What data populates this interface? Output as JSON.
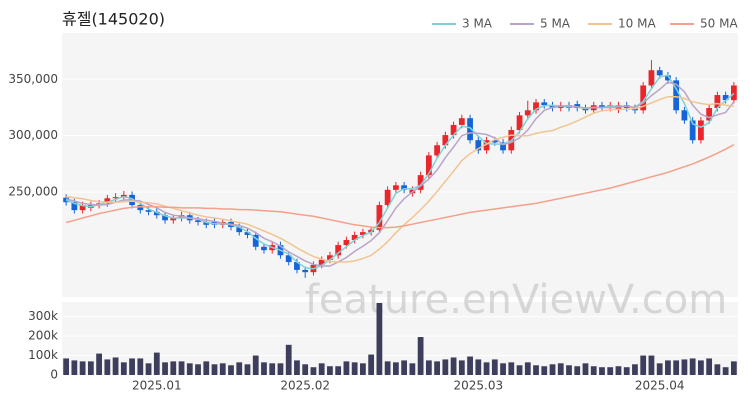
{
  "chart_data": [
    {
      "type": "candlestick",
      "title": "휴젤(145020)",
      "watermark": "feature.enViewV.com",
      "up_color": "#e8262c",
      "down_color": "#1565d8",
      "ylim": [
        157000,
        391000
      ],
      "yticks": [
        {
          "value": 250000,
          "label": "250,000"
        },
        {
          "value": 300000,
          "label": "300,000"
        },
        {
          "value": 350000,
          "label": "350,000"
        }
      ],
      "grid": true,
      "open": [
        245000,
        241000,
        234000,
        236000,
        238500,
        240000,
        244500,
        245500,
        247500,
        238500,
        234000,
        232500,
        229500,
        225000,
        227000,
        229500,
        225000,
        223500,
        224000,
        221000,
        223500,
        219000,
        214500,
        212000,
        201500,
        198500,
        203000,
        194000,
        188000,
        181000,
        179000,
        185500,
        190000,
        194000,
        203000,
        207500,
        212000,
        214500,
        216500,
        238500,
        252000,
        256000,
        249000,
        252000,
        265000,
        282500,
        291500,
        300500,
        309500,
        315500,
        296000,
        287000,
        296000,
        294000,
        287000,
        305000,
        318000,
        322500,
        329500,
        327000,
        324500,
        327000,
        328000,
        324500,
        322500,
        327000,
        324500,
        323000,
        327000,
        324500,
        322500,
        344500,
        358000,
        353500,
        349000,
        322500,
        313500,
        296000,
        313500,
        324500,
        336000,
        331500
      ],
      "high": [
        248000,
        244000,
        241500,
        241500,
        243000,
        247500,
        249000,
        251000,
        250500,
        241500,
        237000,
        235500,
        232500,
        230000,
        232500,
        232500,
        228000,
        226500,
        227000,
        226500,
        226500,
        222000,
        217500,
        215000,
        204500,
        206000,
        206000,
        197000,
        191000,
        184000,
        188500,
        193000,
        197000,
        206000,
        210500,
        215000,
        217500,
        219500,
        241500,
        255000,
        259000,
        259000,
        255000,
        268000,
        285500,
        294500,
        303500,
        312500,
        318500,
        318500,
        299000,
        299000,
        299000,
        297000,
        308000,
        321000,
        331000,
        332500,
        332500,
        330000,
        330000,
        330000,
        331000,
        327500,
        330000,
        330000,
        330000,
        330000,
        330000,
        327500,
        347500,
        367000,
        361000,
        356500,
        352000,
        325500,
        316500,
        316500,
        327500,
        339000,
        339000,
        347500
      ],
      "low": [
        238000,
        231000,
        231000,
        233000,
        235500,
        237000,
        241500,
        242500,
        235500,
        231000,
        229500,
        226500,
        222000,
        222000,
        224000,
        222000,
        220500,
        218000,
        218000,
        218000,
        216000,
        211500,
        209000,
        198500,
        195500,
        195500,
        191000,
        185000,
        178000,
        174000,
        176000,
        182500,
        187000,
        191000,
        200000,
        204500,
        209000,
        211500,
        213500,
        235500,
        249000,
        249000,
        246000,
        249000,
        262000,
        279500,
        288500,
        297500,
        306500,
        293000,
        284000,
        284000,
        291000,
        284000,
        284000,
        302000,
        315000,
        319500,
        324000,
        321500,
        321500,
        321500,
        321500,
        319500,
        319500,
        321500,
        321500,
        320000,
        321500,
        319500,
        319500,
        341500,
        350500,
        346000,
        319500,
        310500,
        293000,
        293000,
        310500,
        321500,
        328500,
        328500
      ],
      "close": [
        241000,
        234000,
        238500,
        238500,
        240000,
        244500,
        245500,
        247500,
        238500,
        234000,
        232500,
        229500,
        225000,
        227000,
        229500,
        225000,
        223500,
        221000,
        221000,
        223500,
        219000,
        214500,
        212000,
        201500,
        198500,
        203000,
        194000,
        188000,
        181000,
        179000,
        185500,
        190000,
        194000,
        203000,
        207500,
        212000,
        214500,
        216500,
        238500,
        252000,
        256000,
        252000,
        252000,
        265000,
        282500,
        291500,
        300500,
        309500,
        315500,
        296000,
        287000,
        296000,
        294000,
        287000,
        305000,
        318000,
        322500,
        329500,
        327000,
        324500,
        327000,
        324500,
        324500,
        322500,
        327000,
        324500,
        327000,
        327000,
        324500,
        322500,
        344500,
        358000,
        353500,
        349000,
        322500,
        313500,
        296000,
        313500,
        324500,
        336000,
        331500,
        344500
      ],
      "series": [
        {
          "name": "3 MA",
          "color": "#7fd1d8",
          "values": [
            243000,
            240000,
            238000,
            237000,
            239000,
            241000,
            243500,
            246000,
            244000,
            240000,
            235000,
            232000,
            229000,
            227000,
            227000,
            227000,
            226000,
            223000,
            222000,
            222000,
            221000,
            219000,
            215000,
            209000,
            204000,
            201000,
            198500,
            195000,
            188000,
            183000,
            182000,
            185000,
            190000,
            196000,
            201500,
            207500,
            211500,
            214500,
            223000,
            236000,
            249000,
            253000,
            253000,
            256000,
            266500,
            280000,
            291500,
            300500,
            308500,
            307000,
            299500,
            293000,
            292500,
            292500,
            295500,
            303500,
            315000,
            323500,
            326500,
            327000,
            326000,
            325500,
            325500,
            324000,
            325000,
            325000,
            326000,
            326000,
            326000,
            325000,
            330500,
            341500,
            352000,
            353500,
            341500,
            328500,
            310500,
            307500,
            311500,
            324500,
            331000,
            337500
          ]
        },
        {
          "name": "5 MA",
          "color": "#b8a4c9",
          "values": [
            244000,
            242000,
            240000,
            239000,
            238500,
            239000,
            241000,
            243000,
            243000,
            242000,
            239000,
            236000,
            232000,
            229500,
            228500,
            227000,
            226500,
            225000,
            224000,
            222500,
            221500,
            220500,
            218000,
            214000,
            209000,
            206000,
            202000,
            197000,
            193000,
            189000,
            186000,
            184500,
            184500,
            188000,
            192000,
            197500,
            202000,
            207000,
            214000,
            224500,
            236000,
            244000,
            250000,
            255500,
            261500,
            269500,
            280500,
            290000,
            300000,
            302500,
            302000,
            301000,
            298000,
            292000,
            294000,
            298000,
            305000,
            315000,
            322500,
            325000,
            326000,
            326500,
            325500,
            324500,
            325000,
            325000,
            325000,
            325500,
            326000,
            325000,
            329000,
            335500,
            341000,
            347500,
            345500,
            339000,
            327000,
            319000,
            316000,
            318500,
            320500,
            330000
          ]
        },
        {
          "name": "10 MA",
          "color": "#f2c48f",
          "values": [
            246000,
            245000,
            244000,
            242500,
            241500,
            241000,
            241000,
            241500,
            242000,
            241000,
            240500,
            239500,
            237500,
            235500,
            233500,
            231500,
            229500,
            228000,
            227000,
            226000,
            224500,
            223000,
            221500,
            218500,
            215500,
            212500,
            209000,
            205000,
            200500,
            196500,
            193000,
            190500,
            188500,
            188000,
            188000,
            189000,
            191000,
            194000,
            199500,
            206000,
            214000,
            221000,
            227500,
            234500,
            242000,
            250500,
            259500,
            268500,
            278000,
            284000,
            288500,
            292500,
            296500,
            298500,
            300500,
            300000,
            300000,
            302000,
            303500,
            304500,
            307500,
            310000,
            313000,
            316500,
            320000,
            322000,
            323000,
            323500,
            323500,
            324000,
            326000,
            329000,
            332000,
            334500,
            334500,
            333000,
            330000,
            328500,
            327500,
            328500,
            327000,
            326000
          ]
        },
        {
          "name": "50 MA",
          "color": "#f4a08a",
          "values": [
            223000,
            225000,
            227000,
            229000,
            231000,
            232500,
            234000,
            235500,
            236500,
            237000,
            237000,
            237000,
            236500,
            236500,
            236000,
            236000,
            236000,
            235500,
            235500,
            235000,
            235000,
            234500,
            234500,
            234000,
            233500,
            233000,
            232500,
            231500,
            230500,
            229500,
            228500,
            227000,
            225500,
            224000,
            222500,
            221000,
            220000,
            219000,
            218500,
            218500,
            219000,
            220000,
            221500,
            223000,
            224500,
            226000,
            227500,
            229000,
            230500,
            232000,
            233000,
            234000,
            235000,
            236000,
            237000,
            238000,
            239000,
            240000,
            241500,
            243000,
            244500,
            246000,
            247500,
            249000,
            250500,
            252000,
            253500,
            255500,
            257500,
            259500,
            261500,
            263500,
            265500,
            267500,
            270000,
            272500,
            275000,
            278000,
            281000,
            284500,
            288000,
            292000
          ]
        }
      ]
    },
    {
      "type": "bar",
      "color": "#3d3d5c",
      "ylim": [
        0,
        375000
      ],
      "yticks": [
        0,
        {
          "value": 100000,
          "label": "100k"
        },
        {
          "value": 200000,
          "label": "200k"
        },
        {
          "value": 300000,
          "label": "300k"
        }
      ],
      "categories": [
        null,
        null,
        null,
        null,
        null,
        null,
        null,
        null,
        null,
        null,
        null,
        "2025.01",
        null,
        null,
        null,
        null,
        null,
        null,
        null,
        null,
        null,
        null,
        null,
        null,
        null,
        null,
        null,
        null,
        null,
        "2025.02",
        null,
        null,
        null,
        null,
        null,
        null,
        null,
        null,
        null,
        null,
        null,
        null,
        null,
        null,
        null,
        null,
        null,
        null,
        null,
        null,
        "2025.03",
        null,
        null,
        null,
        null,
        null,
        null,
        null,
        null,
        null,
        null,
        null,
        null,
        null,
        null,
        null,
        null,
        null,
        null,
        null,
        null,
        null,
        "2025.04",
        null,
        null,
        null,
        null,
        null,
        null,
        null,
        null,
        null
      ],
      "values": [
        85000,
        75000,
        70000,
        70000,
        110000,
        80000,
        90000,
        65000,
        85000,
        85000,
        60000,
        115000,
        65000,
        70000,
        70000,
        60000,
        55000,
        70000,
        55000,
        60000,
        50000,
        65000,
        55000,
        100000,
        65000,
        60000,
        60000,
        155000,
        75000,
        55000,
        40000,
        60000,
        45000,
        45000,
        70000,
        65000,
        60000,
        105000,
        370000,
        70000,
        65000,
        75000,
        60000,
        195000,
        75000,
        70000,
        80000,
        90000,
        75000,
        95000,
        80000,
        65000,
        80000,
        60000,
        65000,
        50000,
        65000,
        50000,
        45000,
        55000,
        60000,
        50000,
        45000,
        60000,
        45000,
        40000,
        40000,
        45000,
        40000,
        55000,
        100000,
        100000,
        60000,
        75000,
        75000,
        80000,
        85000,
        75000,
        85000,
        55000,
        40000,
        70000
      ]
    }
  ]
}
